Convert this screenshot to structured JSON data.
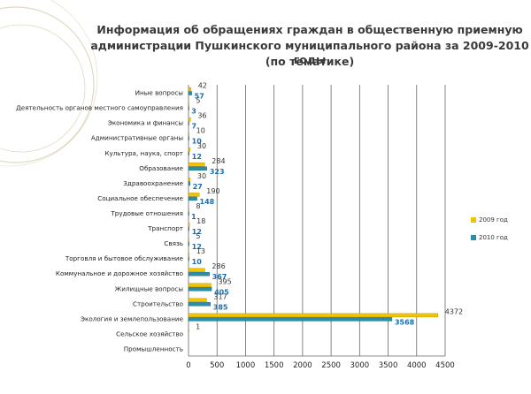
{
  "title": {
    "line1": "Информация об обращениях граждан в общественную приемную",
    "line2": "администрации Пушкинского муниципального района за 2009-2010 годы",
    "line3": "(по тематике)"
  },
  "colors": {
    "series_2009": "#f2c400",
    "series_2010": "#2a8ea8",
    "value_2010": "#1a6fb0",
    "grid": "#666666",
    "decor": "#c9b98e"
  },
  "chart_data": {
    "type": "bar",
    "orientation": "horizontal",
    "title": "Информация об обращениях граждан в общественную приемную администрации Пушкинского муниципального района за 2009-2010 годы (по тематике)",
    "categories": [
      "Иные вопросы",
      "Деятельность органов местного самоуправления",
      "Экономика и финансы",
      "Административные органы",
      "Культура, наука, спорт",
      "Образование",
      "Здравоохранение",
      "Социальное обеспечение",
      "Трудовые отношения",
      "Транспорт",
      "Связь",
      "Торговля и бытовое обслуживание",
      "Коммунальное и дорожное хозяйство",
      "Жилищные вопросы",
      "Строительство",
      "Экология и землепользование",
      "Сельское хозяйство",
      "Промышленность"
    ],
    "series": [
      {
        "name": "2009 год",
        "values": [
          42,
          5,
          36,
          10,
          30,
          284,
          30,
          190,
          8,
          18,
          5,
          13,
          286,
          395,
          317,
          4372,
          1,
          null
        ]
      },
      {
        "name": "2010 год",
        "values": [
          57,
          3,
          7,
          10,
          12,
          323,
          27,
          148,
          1,
          12,
          12,
          10,
          367,
          405,
          385,
          3568,
          null,
          null
        ]
      }
    ],
    "xlim": [
      0,
      4500
    ],
    "xticks": [
      0,
      500,
      1000,
      1500,
      2000,
      2500,
      3000,
      3500,
      4000,
      4500
    ],
    "grid": true,
    "legend_position": "right"
  }
}
